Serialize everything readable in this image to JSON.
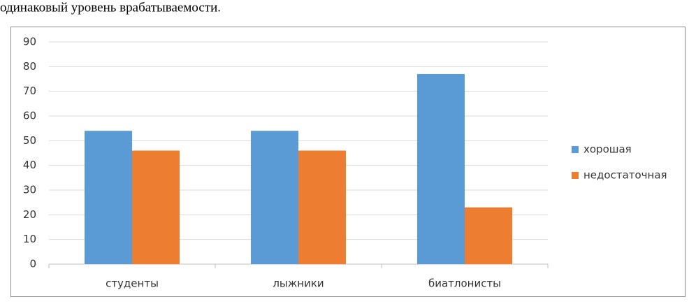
{
  "document_text": "одинаковый уровень врабатываемости.",
  "chart_data": {
    "type": "bar",
    "categories": [
      "студенты",
      "лыжники",
      "биатлонисты"
    ],
    "series": [
      {
        "name": "хорошая",
        "color": "#5b9bd5",
        "values": [
          54,
          54,
          77
        ]
      },
      {
        "name": "недостаточная",
        "color": "#ed7d31",
        "values": [
          46,
          46,
          23
        ]
      }
    ],
    "ylim": [
      0,
      90
    ],
    "yticks": [
      0,
      10,
      20,
      30,
      40,
      50,
      60,
      70,
      80,
      90
    ],
    "grid": true,
    "legend": "right"
  }
}
